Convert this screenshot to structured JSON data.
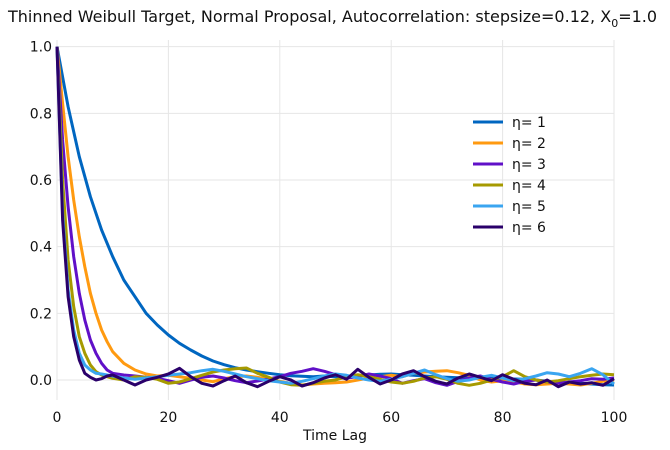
{
  "chart_data": {
    "type": "line",
    "title": "Thinned Weibull Target, Normal Proposal, Autocorrelation: stepsize=0.12, X",
    "title_sub": "0",
    "title_tail": "=1.0",
    "xlabel": "Time Lag",
    "ylabel": "",
    "xlim": [
      0,
      100
    ],
    "ylim": [
      -0.06,
      1.02
    ],
    "x_ticks": [
      "0",
      "20",
      "40",
      "60",
      "80",
      "100"
    ],
    "x_tick_values": [
      0,
      20,
      40,
      60,
      80,
      100
    ],
    "y_ticks": [
      "0.0",
      "0.2",
      "0.4",
      "0.6",
      "0.8",
      "1.0"
    ],
    "y_tick_values": [
      0,
      0.2,
      0.4,
      0.6,
      0.8,
      1.0
    ],
    "grid": true,
    "legend_position": "right",
    "series": [
      {
        "name": "η= 1",
        "color": "#0066c0",
        "x": [
          0,
          2,
          4,
          6,
          8,
          10,
          12,
          14,
          16,
          18,
          20,
          22,
          24,
          26,
          28,
          30,
          32,
          34,
          36,
          38,
          40,
          42,
          44,
          46,
          48,
          50,
          52,
          54,
          56,
          58,
          60,
          62,
          64,
          66,
          68,
          70,
          72,
          74,
          76,
          78,
          80,
          82,
          84,
          86,
          88,
          90,
          92,
          94,
          96,
          98,
          100
        ],
        "y": [
          1.0,
          0.82,
          0.67,
          0.55,
          0.45,
          0.37,
          0.3,
          0.25,
          0.2,
          0.165,
          0.135,
          0.11,
          0.09,
          0.072,
          0.057,
          0.046,
          0.037,
          0.03,
          0.025,
          0.02,
          0.016,
          0.013,
          0.011,
          0.01,
          0.012,
          0.01,
          0.011,
          0.013,
          0.015,
          0.017,
          0.018,
          0.016,
          0.014,
          0.012,
          0.01,
          0.008,
          0.007,
          0.006,
          0.006,
          0.005,
          0.004,
          0.003,
          0.002,
          0.0,
          -0.004,
          -0.006,
          -0.008,
          -0.01,
          -0.012,
          -0.014,
          -0.015
        ]
      },
      {
        "name": "η= 2",
        "color": "#ff9a10",
        "x": [
          0,
          1,
          2,
          3,
          4,
          5,
          6,
          7,
          8,
          9,
          10,
          12,
          14,
          16,
          18,
          20,
          22,
          24,
          26,
          28,
          30,
          32,
          34,
          36,
          38,
          40,
          42,
          44,
          46,
          48,
          50,
          52,
          54,
          56,
          58,
          60,
          62,
          64,
          66,
          68,
          70,
          72,
          74,
          76,
          78,
          80,
          82,
          84,
          86,
          88,
          90,
          92,
          94,
          96,
          98,
          100
        ],
        "y": [
          1.0,
          0.83,
          0.67,
          0.54,
          0.43,
          0.34,
          0.26,
          0.2,
          0.15,
          0.115,
          0.085,
          0.05,
          0.03,
          0.018,
          0.012,
          0.014,
          0.01,
          0.005,
          0.0,
          -0.005,
          0.004,
          0.01,
          0.012,
          0.008,
          0.003,
          -0.004,
          -0.01,
          -0.015,
          -0.012,
          -0.01,
          -0.008,
          -0.006,
          0.0,
          0.006,
          0.01,
          0.014,
          0.01,
          0.02,
          0.024,
          0.026,
          0.028,
          0.022,
          0.014,
          0.0,
          -0.006,
          -0.002,
          -0.005,
          -0.012,
          -0.014,
          -0.012,
          -0.01,
          -0.012,
          -0.015,
          -0.01,
          -0.004,
          0.0
        ]
      },
      {
        "name": "η= 3",
        "color": "#6010c8",
        "x": [
          0,
          1,
          2,
          3,
          4,
          5,
          6,
          7,
          8,
          9,
          10,
          12,
          14,
          16,
          18,
          20,
          22,
          24,
          26,
          28,
          30,
          32,
          34,
          36,
          38,
          40,
          42,
          44,
          46,
          48,
          50,
          52,
          54,
          56,
          58,
          60,
          62,
          64,
          66,
          68,
          70,
          72,
          74,
          76,
          78,
          80,
          82,
          84,
          86,
          88,
          90,
          92,
          94,
          96,
          98,
          100
        ],
        "y": [
          1.0,
          0.72,
          0.52,
          0.37,
          0.26,
          0.18,
          0.12,
          0.08,
          0.05,
          0.03,
          0.02,
          0.015,
          0.012,
          0.008,
          0.005,
          -0.002,
          -0.01,
          0.0,
          0.008,
          0.012,
          0.006,
          -0.002,
          -0.008,
          -0.003,
          0.003,
          0.01,
          0.02,
          0.026,
          0.034,
          0.026,
          0.016,
          0.006,
          0.01,
          0.018,
          0.012,
          0.004,
          -0.01,
          -0.002,
          0.004,
          -0.008,
          -0.016,
          -0.004,
          0.006,
          0.012,
          0.002,
          -0.006,
          -0.012,
          -0.004,
          0.0,
          -0.006,
          -0.01,
          -0.006,
          -0.002,
          0.004,
          0.002,
          0.006
        ]
      },
      {
        "name": "η= 4",
        "color": "#a69a00",
        "x": [
          0,
          1,
          2,
          3,
          4,
          5,
          6,
          7,
          8,
          10,
          12,
          14,
          16,
          18,
          20,
          22,
          24,
          26,
          28,
          30,
          32,
          34,
          36,
          38,
          40,
          42,
          44,
          46,
          48,
          50,
          52,
          54,
          56,
          58,
          60,
          62,
          64,
          66,
          68,
          70,
          72,
          74,
          76,
          78,
          80,
          82,
          84,
          86,
          88,
          90,
          92,
          94,
          96,
          98,
          100
        ],
        "y": [
          1.0,
          0.6,
          0.36,
          0.22,
          0.13,
          0.08,
          0.045,
          0.025,
          0.015,
          0.005,
          0.0,
          0.01,
          0.008,
          0.002,
          -0.01,
          -0.006,
          0.004,
          0.014,
          0.024,
          0.03,
          0.034,
          0.036,
          0.02,
          0.008,
          -0.006,
          -0.014,
          -0.016,
          -0.01,
          -0.004,
          0.0,
          0.01,
          0.016,
          0.01,
          0.002,
          -0.006,
          -0.01,
          -0.004,
          0.006,
          0.01,
          0.002,
          -0.01,
          -0.016,
          -0.01,
          0.0,
          0.01,
          0.028,
          0.01,
          0.0,
          -0.006,
          -0.002,
          0.004,
          0.01,
          0.014,
          0.018,
          0.016
        ]
      },
      {
        "name": "η= 5",
        "color": "#3aa5f0",
        "x": [
          0,
          1,
          2,
          3,
          4,
          5,
          6,
          7,
          8,
          10,
          12,
          14,
          16,
          18,
          20,
          22,
          24,
          26,
          28,
          30,
          32,
          34,
          36,
          38,
          40,
          42,
          44,
          46,
          48,
          50,
          52,
          54,
          56,
          58,
          60,
          62,
          64,
          66,
          68,
          70,
          72,
          74,
          76,
          78,
          80,
          82,
          84,
          86,
          88,
          90,
          92,
          94,
          96,
          98,
          100
        ],
        "y": [
          1.0,
          0.5,
          0.27,
          0.15,
          0.08,
          0.045,
          0.03,
          0.02,
          0.018,
          0.012,
          0.006,
          0.002,
          0.006,
          0.01,
          0.014,
          0.018,
          0.022,
          0.028,
          0.032,
          0.026,
          0.018,
          0.01,
          0.004,
          -0.002,
          -0.006,
          -0.01,
          -0.004,
          0.004,
          0.012,
          0.018,
          0.014,
          0.006,
          0.0,
          -0.004,
          0.002,
          0.01,
          0.02,
          0.03,
          0.016,
          0.004,
          -0.004,
          0.0,
          0.008,
          0.014,
          0.006,
          -0.002,
          0.004,
          0.012,
          0.022,
          0.018,
          0.01,
          0.02,
          0.034,
          0.016,
          -0.012
        ]
      },
      {
        "name": "η= 6",
        "color": "#2a006a",
        "x": [
          0,
          1,
          2,
          3,
          4,
          5,
          6,
          7,
          8,
          9,
          10,
          12,
          14,
          16,
          18,
          20,
          22,
          24,
          26,
          28,
          30,
          32,
          34,
          36,
          38,
          40,
          42,
          44,
          46,
          48,
          50,
          52,
          54,
          56,
          58,
          60,
          62,
          64,
          66,
          68,
          70,
          72,
          74,
          76,
          78,
          80,
          82,
          84,
          86,
          88,
          90,
          92,
          94,
          96,
          98,
          100
        ],
        "y": [
          1.0,
          0.48,
          0.25,
          0.13,
          0.06,
          0.02,
          0.008,
          0.0,
          0.004,
          0.012,
          0.015,
          0.0,
          -0.015,
          0.0,
          0.008,
          0.018,
          0.035,
          0.01,
          -0.01,
          -0.018,
          -0.002,
          0.012,
          -0.008,
          -0.02,
          -0.004,
          0.01,
          0.0,
          -0.018,
          -0.008,
          0.006,
          0.016,
          0.002,
          0.032,
          0.008,
          -0.012,
          0.0,
          0.018,
          0.028,
          0.01,
          -0.004,
          -0.012,
          0.006,
          0.018,
          0.008,
          -0.002,
          0.016,
          0.002,
          -0.01,
          -0.014,
          0.0,
          -0.02,
          -0.006,
          -0.012,
          -0.008,
          -0.016,
          0.004
        ]
      }
    ]
  }
}
